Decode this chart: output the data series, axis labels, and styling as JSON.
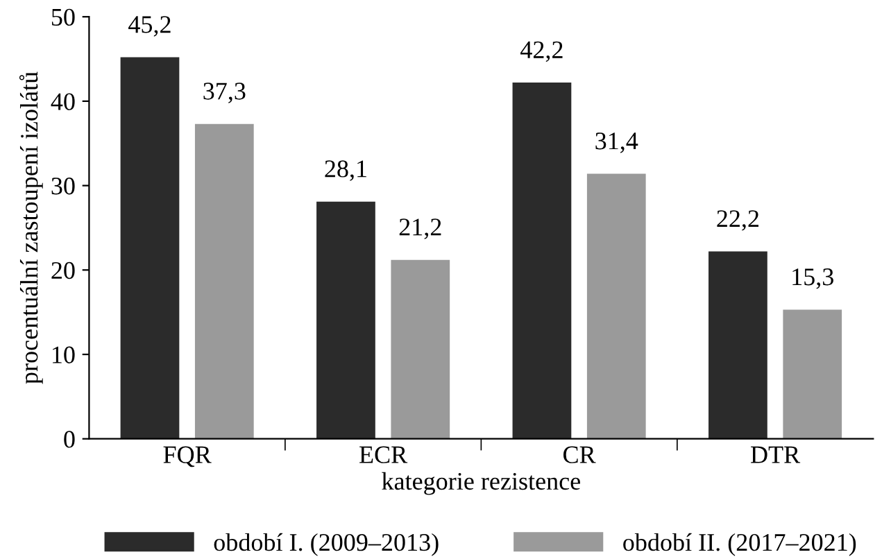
{
  "chart_data": {
    "type": "bar",
    "xlabel": "kategorie rezistence",
    "ylabel": "procentuální zastoupení izolátů",
    "categories": [
      "FQR",
      "ECR",
      "CR",
      "DTR"
    ],
    "series": [
      {
        "name": "období I. (2009–2013)",
        "color": "#2b2b2b",
        "values": [
          45.2,
          28.1,
          42.2,
          22.2
        ],
        "value_labels": [
          "45,2",
          "28,1",
          "42,2",
          "22,2"
        ]
      },
      {
        "name": "období II. (2017–2021)",
        "color": "#9a9a9a",
        "values": [
          37.3,
          21.2,
          31.4,
          15.3
        ],
        "value_labels": [
          "37,3",
          "21,2",
          "31,4",
          "15,3"
        ]
      }
    ],
    "ylim": [
      0,
      50
    ],
    "yticks": [
      0,
      10,
      20,
      30,
      40,
      50
    ],
    "grid": false,
    "legend": "bottom"
  }
}
